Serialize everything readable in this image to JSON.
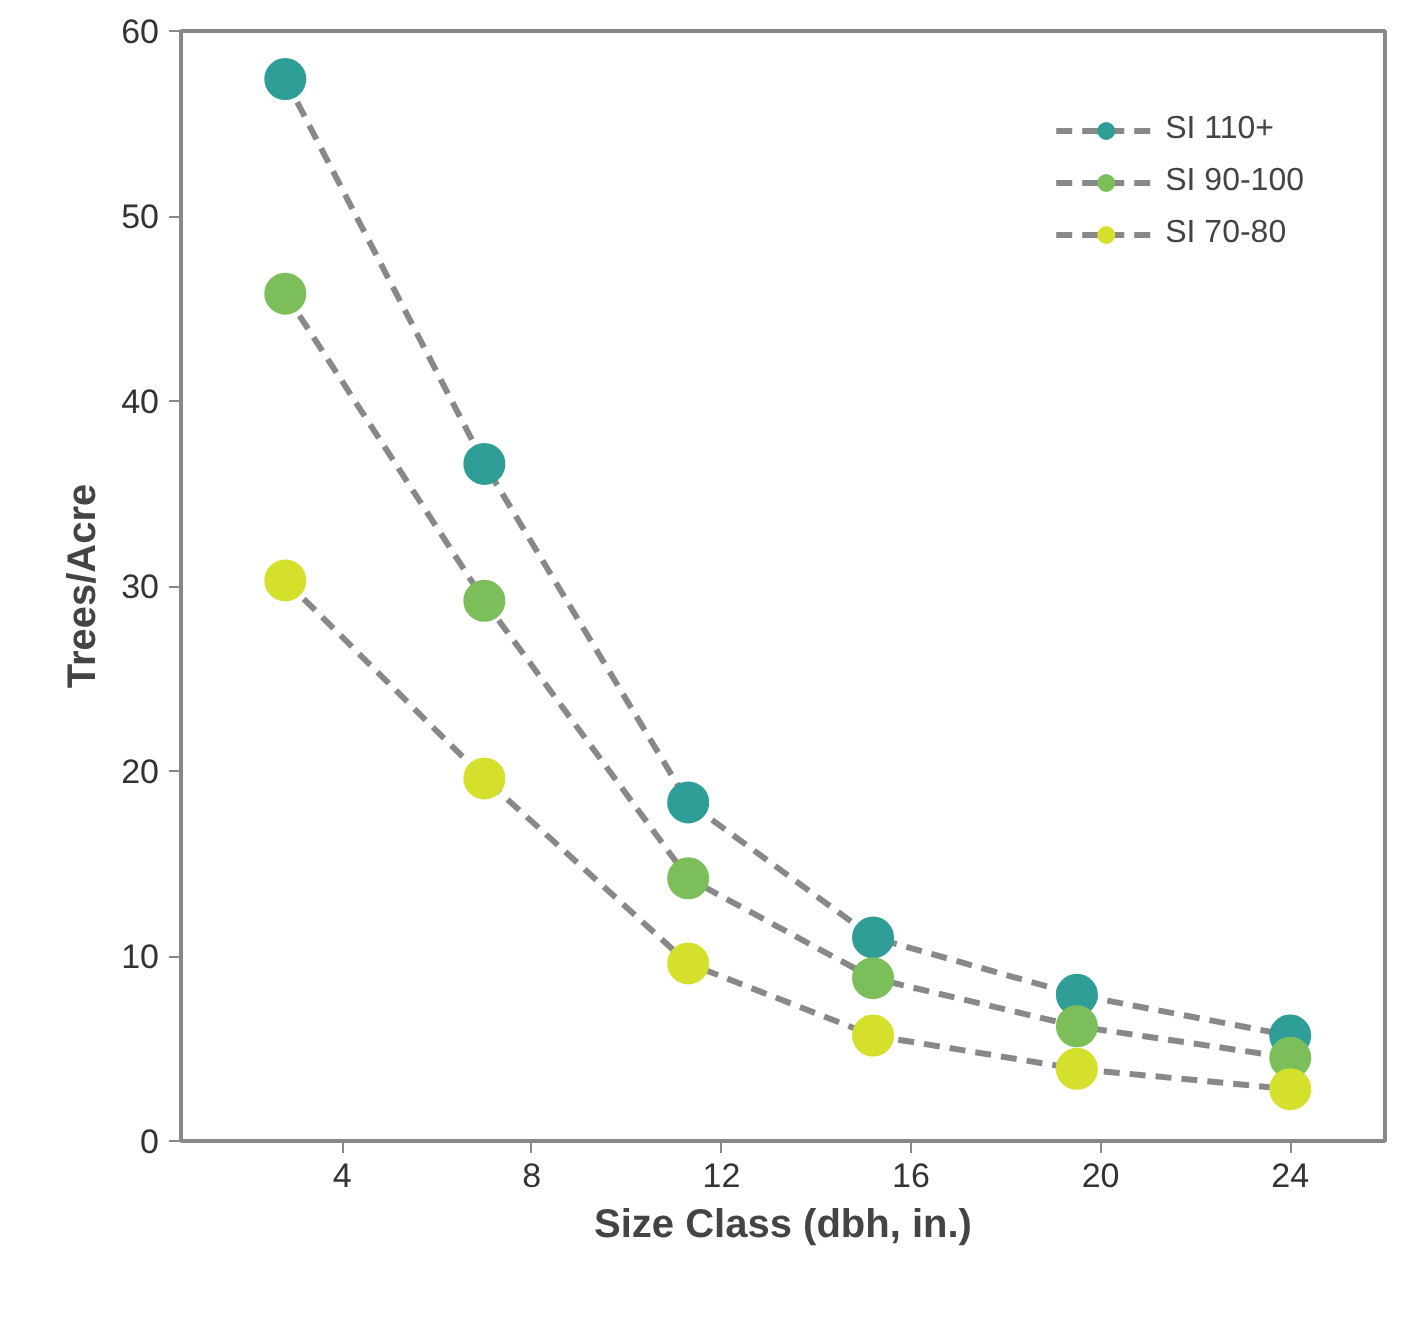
{
  "chart_data": {
    "type": "line",
    "xlabel": "Size Class (dbh, in.)",
    "ylabel": "Trees/Acre",
    "x": [
      2.8,
      7,
      11.3,
      15.2,
      19.5,
      24
    ],
    "series": [
      {
        "name": "SI 110+",
        "color": "#2e9e96",
        "values": [
          57.4,
          36.6,
          18.3,
          11.0,
          7.9,
          5.7
        ]
      },
      {
        "name": "SI 90-100",
        "color": "#7cbf5a",
        "values": [
          45.8,
          29.2,
          14.2,
          8.8,
          6.2,
          4.5
        ]
      },
      {
        "name": "SI 70-80",
        "color": "#d4e02c",
        "values": [
          30.3,
          19.6,
          9.6,
          5.7,
          3.9,
          2.8
        ]
      }
    ],
    "xlim": [
      0.6,
      26
    ],
    "ylim": [
      0,
      60
    ],
    "xticks": [
      4,
      8,
      12,
      16,
      20,
      24
    ],
    "yticks": [
      0,
      10,
      20,
      30,
      40,
      50,
      60
    ],
    "grid": false,
    "legend": "top right",
    "marker": "circle",
    "line_style": "dashed"
  }
}
